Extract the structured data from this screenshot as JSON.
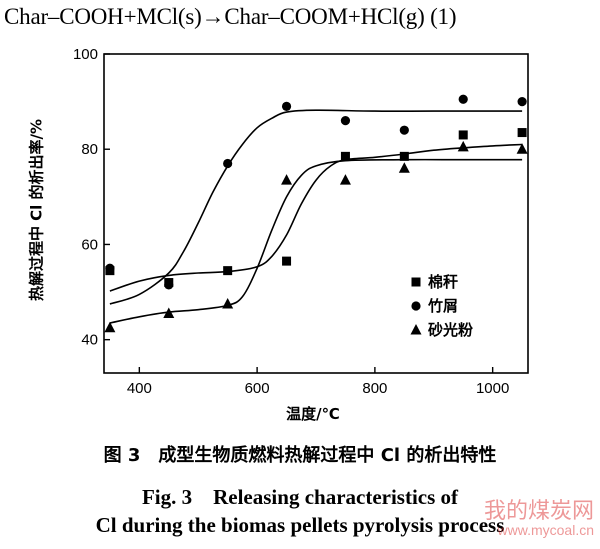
{
  "equation": "Char–COOH+MCl(s)→Char–COOM+HCl(g)  (1)",
  "caption": {
    "cn": "图 3　成型生物质燃料热解过程中 Cl 的析出特性",
    "en_line1": "Fig. 3　Releasing characteristics of",
    "en_line2": "Cl during the biomas pellets pyrolysis process"
  },
  "watermark": {
    "text": "我的煤炭网",
    "url": "www.mycoal.cn"
  },
  "chart_data": {
    "type": "scatter",
    "xlabel": "温度/℃",
    "ylabel": "热解过程中 Cl 的析出率/%",
    "xlim": [
      340,
      1060
    ],
    "ylim": [
      33,
      100
    ],
    "xticks": [
      400,
      600,
      800,
      1000
    ],
    "yticks": [
      40,
      60,
      80,
      100
    ],
    "grid": false,
    "legend_position": "bottom-right",
    "series": [
      {
        "name": "棉秆",
        "marker": "square",
        "x": [
          350,
          450,
          550,
          650,
          750,
          850,
          950,
          1050
        ],
        "y": [
          54.5,
          52,
          54.5,
          56.5,
          78.5,
          78.5,
          83,
          83.5
        ],
        "fit": [
          [
            350,
            50.2
          ],
          [
            400,
            52.3
          ],
          [
            450,
            53.5
          ],
          [
            500,
            54
          ],
          [
            550,
            54.3
          ],
          [
            600,
            55.3
          ],
          [
            625,
            57.5
          ],
          [
            650,
            62
          ],
          [
            675,
            68.5
          ],
          [
            700,
            73.5
          ],
          [
            725,
            76.5
          ],
          [
            750,
            77.8
          ],
          [
            800,
            78.3
          ],
          [
            850,
            79
          ],
          [
            900,
            79.8
          ],
          [
            950,
            80.3
          ],
          [
            1000,
            80.7
          ],
          [
            1050,
            81
          ]
        ]
      },
      {
        "name": "竹屑",
        "marker": "circle",
        "x": [
          350,
          450,
          550,
          650,
          750,
          850,
          950,
          1050
        ],
        "y": [
          55,
          51.5,
          77,
          89,
          86,
          84,
          90.5,
          90
        ],
        "fit": [
          [
            350,
            47.5
          ],
          [
            400,
            49.5
          ],
          [
            450,
            54
          ],
          [
            475,
            58.5
          ],
          [
            500,
            64.5
          ],
          [
            525,
            71
          ],
          [
            550,
            76.5
          ],
          [
            575,
            81
          ],
          [
            600,
            84.5
          ],
          [
            625,
            86.5
          ],
          [
            650,
            87.8
          ],
          [
            700,
            88.2
          ],
          [
            800,
            88
          ],
          [
            900,
            88
          ],
          [
            1050,
            88
          ]
        ]
      },
      {
        "name": "砂光粉",
        "marker": "triangle",
        "x": [
          350,
          450,
          550,
          650,
          750,
          850,
          950,
          1050
        ],
        "y": [
          42.5,
          45.5,
          47.5,
          73.5,
          73.5,
          76,
          80.5,
          80
        ],
        "fit": [
          [
            350,
            43.5
          ],
          [
            400,
            44.8
          ],
          [
            450,
            45.8
          ],
          [
            500,
            46.3
          ],
          [
            550,
            47.2
          ],
          [
            575,
            49
          ],
          [
            600,
            55
          ],
          [
            625,
            63
          ],
          [
            650,
            70
          ],
          [
            675,
            74.5
          ],
          [
            700,
            76.5
          ],
          [
            750,
            77.6
          ],
          [
            850,
            77.8
          ],
          [
            950,
            77.8
          ],
          [
            1050,
            77.8
          ]
        ]
      }
    ]
  }
}
